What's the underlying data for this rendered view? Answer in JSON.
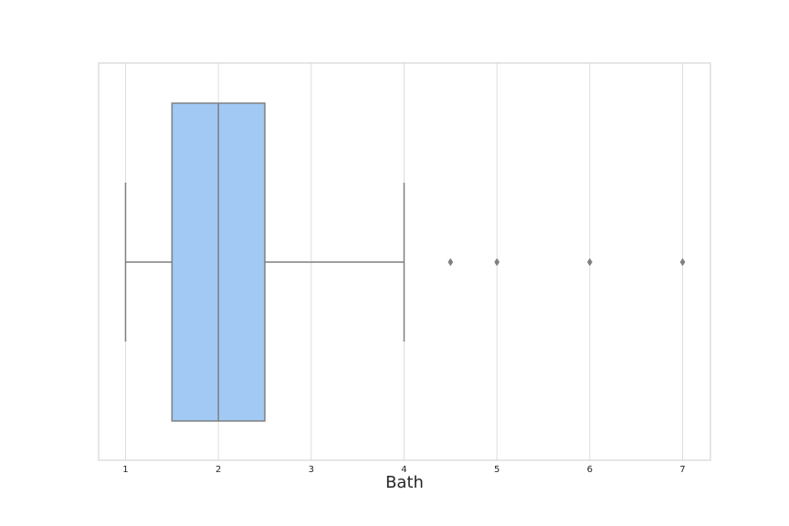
{
  "chart_data": {
    "type": "box",
    "orientation": "horizontal",
    "xlabel": "Bath",
    "ylabel": "",
    "xlim": [
      0.71,
      7.3
    ],
    "xticks": [
      1,
      2,
      3,
      4,
      5,
      6,
      7
    ],
    "grid": "x",
    "style": "whitegrid",
    "series": [
      {
        "min": 1,
        "q1": 1.5,
        "median": 2,
        "q3": 2.5,
        "max": 4,
        "outliers": [
          4.5,
          5,
          6,
          7
        ]
      }
    ],
    "colors": {
      "box_fill": "#a1c9f4",
      "lines": "#7f7f7f",
      "grid": "#dedede",
      "frame": "#cccccc",
      "text": "#262626"
    }
  }
}
